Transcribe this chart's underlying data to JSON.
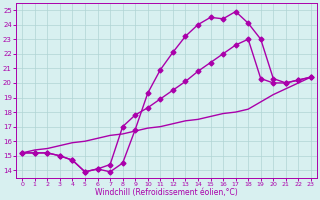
{
  "line1_x": [
    0,
    1,
    2,
    3,
    4,
    5,
    6,
    7,
    8,
    9,
    10,
    11,
    12,
    13,
    14,
    15,
    16,
    17,
    18,
    19,
    20,
    21,
    22,
    23
  ],
  "line1_y": [
    15.2,
    15.2,
    15.2,
    15.0,
    14.7,
    13.9,
    14.1,
    13.9,
    14.5,
    16.8,
    19.3,
    20.9,
    22.1,
    23.2,
    24.0,
    24.5,
    24.4,
    24.9,
    24.1,
    23.0,
    20.3,
    20.0,
    20.2,
    20.4
  ],
  "line2_x": [
    0,
    1,
    2,
    3,
    4,
    5,
    6,
    7,
    8,
    9,
    10,
    11,
    12,
    13,
    14,
    15,
    16,
    17,
    18,
    19,
    20,
    21,
    22,
    23
  ],
  "line2_y": [
    15.2,
    15.2,
    15.2,
    15.0,
    14.7,
    13.9,
    14.1,
    14.4,
    17.0,
    17.8,
    18.3,
    18.9,
    19.5,
    20.1,
    20.8,
    21.4,
    22.0,
    22.6,
    23.0,
    20.3,
    20.0,
    20.0,
    20.2,
    20.4
  ],
  "line3_x": [
    0,
    1,
    2,
    3,
    4,
    5,
    6,
    7,
    8,
    9,
    10,
    11,
    12,
    13,
    14,
    15,
    16,
    17,
    18,
    19,
    20,
    21,
    22,
    23
  ],
  "line3_y": [
    15.2,
    15.4,
    15.5,
    15.7,
    15.9,
    16.0,
    16.2,
    16.4,
    16.5,
    16.7,
    16.9,
    17.0,
    17.2,
    17.4,
    17.5,
    17.7,
    17.9,
    18.0,
    18.2,
    18.7,
    19.2,
    19.6,
    20.0,
    20.4
  ],
  "color": "#aa00aa",
  "bg_color": "#d8f0f0",
  "grid_color": "#b0d4d4",
  "xlabel": "Windchill (Refroidissement éolien,°C)",
  "xlim": [
    -0.5,
    23.5
  ],
  "ylim": [
    13.5,
    25.5
  ],
  "yticks": [
    14,
    15,
    16,
    17,
    18,
    19,
    20,
    21,
    22,
    23,
    24,
    25
  ],
  "xticks": [
    0,
    1,
    2,
    3,
    4,
    5,
    6,
    7,
    8,
    9,
    10,
    11,
    12,
    13,
    14,
    15,
    16,
    17,
    18,
    19,
    20,
    21,
    22,
    23
  ],
  "marker": "D",
  "markersize": 2.5,
  "linewidth": 1.0
}
